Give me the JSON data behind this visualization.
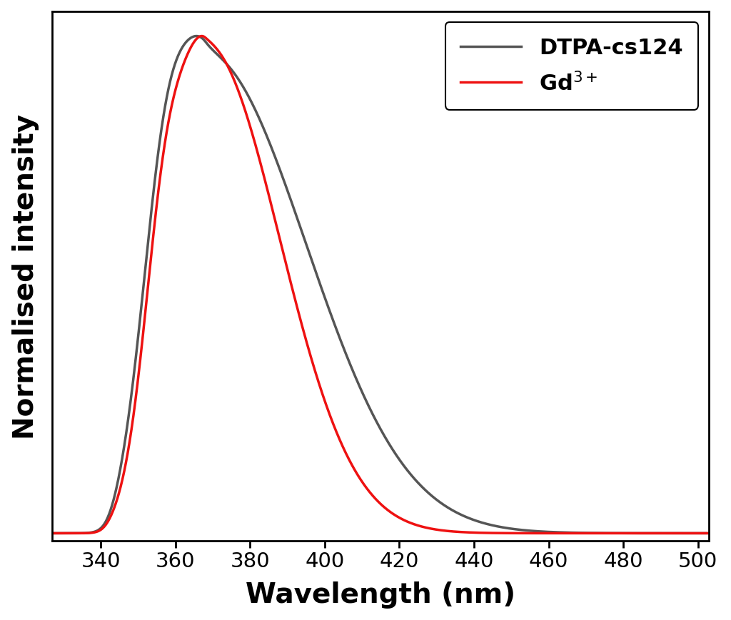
{
  "title": "",
  "xlabel": "Wavelength (nm)",
  "ylabel": "Normalised intensity",
  "xlim": [
    327,
    503
  ],
  "ylim": [
    -0.015,
    1.05
  ],
  "xticks": [
    340,
    360,
    380,
    400,
    420,
    440,
    460,
    480,
    500
  ],
  "background_color": "#ffffff",
  "line_gray_color": "#555555",
  "line_red_color": "#ee1111",
  "line_width": 2.5,
  "legend_labels": [
    "DTPA-cs124",
    "Gd$^{3+}$"
  ],
  "legend_fontsize": 22,
  "axis_label_fontsize": 28,
  "tick_label_fontsize": 21,
  "legend_loc": "upper right",
  "figsize": [
    10.24,
    8.7
  ],
  "dpi": 100
}
